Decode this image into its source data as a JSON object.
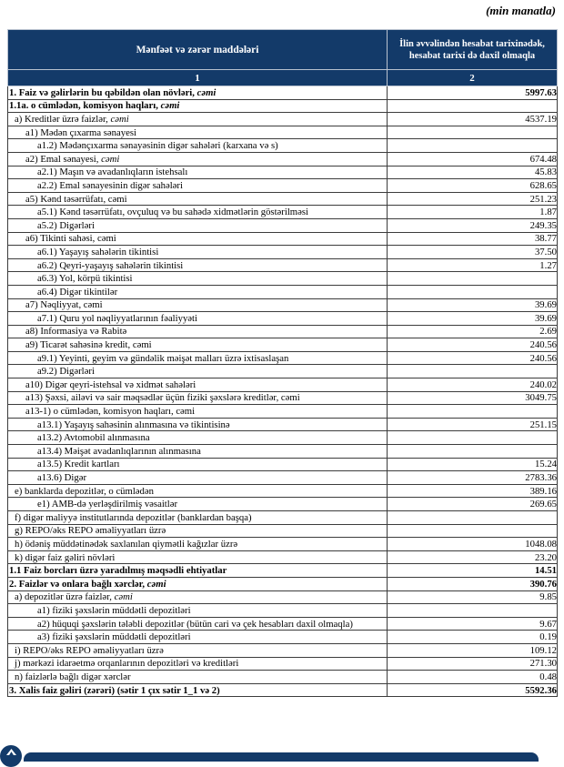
{
  "unit_note": "(min manatla)",
  "accent_color": "#133a69",
  "table": {
    "col1_header": "Mənfəət və zərər maddələri",
    "col2_header_line1": "İlin əvvəlindən hesabat tarixinədək,",
    "col2_header_line2": "hesabat tarixi də daxil olmaqla",
    "col1_index": "1",
    "col2_index": "2",
    "rows": [
      {
        "main": "1. Faiz və gəlirlərin bu qəbildən olan növləri, ",
        "em": "cəmi",
        "value": "5997.63",
        "indent": 0,
        "bold": true
      },
      {
        "main": "1.1a. o cümlədən, komisyon haqları, ",
        "em": "cəmi",
        "value": "",
        "indent": 0,
        "bold": true
      },
      {
        "main": "a) Kreditlər üzrə faizlər, ",
        "em": "cəmi",
        "value": "4537.19",
        "indent": 1,
        "bold": false
      },
      {
        "main": "a1) Mədən çıxarma sənayesi",
        "em": "",
        "value": "",
        "indent": 2,
        "bold": false
      },
      {
        "main": "a1.2) Mədənçıxarma sənayəsinin digər sahələri (karxana və s)",
        "em": "",
        "value": "",
        "indent": 3,
        "bold": false
      },
      {
        "main": "a2) Emal sənayesi, ",
        "em": "cəmi",
        "value": "674.48",
        "indent": 2,
        "bold": false
      },
      {
        "main": "a2.1) Maşın və avadanlıqların istehsalı",
        "em": "",
        "value": "45.83",
        "indent": 3,
        "bold": false
      },
      {
        "main": "a2.2) Emal sənayesinin digər sahələri",
        "em": "",
        "value": "628.65",
        "indent": 3,
        "bold": false
      },
      {
        "main": "a5) Kənd təsərrüfatı, cəmi",
        "em": "",
        "value": "251.23",
        "indent": 2,
        "bold": false
      },
      {
        "main": "a5.1) Kənd təsərrüfatı, ovçuluq və bu sahədə xidmətlərin göstərilməsi",
        "em": "",
        "value": "1.87",
        "indent": 3,
        "bold": false
      },
      {
        "main": "a5.2) Digərləri",
        "em": "",
        "value": "249.35",
        "indent": 3,
        "bold": false
      },
      {
        "main": "a6) Tikinti sahəsi, cəmi",
        "em": "",
        "value": "38.77",
        "indent": 2,
        "bold": false
      },
      {
        "main": "a6.1) Yaşayış sahələrin tikintisi",
        "em": "",
        "value": "37.50",
        "indent": 3,
        "bold": false
      },
      {
        "main": "a6.2) Qeyri-yaşayış sahələrin tikintisi",
        "em": "",
        "value": "1.27",
        "indent": 3,
        "bold": false
      },
      {
        "main": "a6.3) Yol, körpü tikintisi",
        "em": "",
        "value": "",
        "indent": 3,
        "bold": false
      },
      {
        "main": "a6.4) Digər tikintilər",
        "em": "",
        "value": "",
        "indent": 3,
        "bold": false
      },
      {
        "main": "a7) Nəqliyyat, cəmi",
        "em": "",
        "value": "39.69",
        "indent": 2,
        "bold": false
      },
      {
        "main": "a7.1) Quru yol nəqliyyatlarının fəaliyyəti",
        "em": "",
        "value": "39.69",
        "indent": 3,
        "bold": false
      },
      {
        "main": "a8)  Informasiya və Rabitə",
        "em": "",
        "value": "2.69",
        "indent": 2,
        "bold": false
      },
      {
        "main": "a9) Ticarət sahəsinə kredit, cəmi",
        "em": "",
        "value": "240.56",
        "indent": 2,
        "bold": false
      },
      {
        "main": "a9.1) Yeyinti, geyim və gündəlik məişət malları üzrə ixtisaslaşan",
        "em": "",
        "value": "240.56",
        "indent": 3,
        "bold": false
      },
      {
        "main": "a9.2) Digərləri",
        "em": "",
        "value": "",
        "indent": 3,
        "bold": false
      },
      {
        "main": "a10) Digər qeyri-istehsal və xidmət sahələri",
        "em": "",
        "value": "240.02",
        "indent": 2,
        "bold": false
      },
      {
        "main": "a13) Şəxsi, ailəvi və sair məqsədlər üçün fiziki şəxslərə kreditlər, cəmi",
        "em": "",
        "value": "3049.75",
        "indent": 2,
        "bold": false
      },
      {
        "main": "a13-1) o cümlədən, komisyon haqları, cəmi",
        "em": "",
        "value": "",
        "indent": 2,
        "bold": false
      },
      {
        "main": "a13.1) Yaşayış sahəsinin alınmasına və tikintisinə",
        "em": "",
        "value": "251.15",
        "indent": 3,
        "bold": false
      },
      {
        "main": "a13.2) Avtomobil alınmasına",
        "em": "",
        "value": "",
        "indent": 3,
        "bold": false
      },
      {
        "main": "a13.4) Məişət avadanlıqlarının alınmasına",
        "em": "",
        "value": "",
        "indent": 3,
        "bold": false
      },
      {
        "main": "a13.5) Kredit kartları",
        "em": "",
        "value": "15.24",
        "indent": 3,
        "bold": false
      },
      {
        "main": "a13.6) Digər",
        "em": "",
        "value": "2783.36",
        "indent": 3,
        "bold": false
      },
      {
        "main": "e) banklarda depozitlər, o cümlədən",
        "em": "",
        "value": "389.16",
        "indent": 1,
        "bold": false
      },
      {
        "main": "e1)  AMB-də yerləşdirilmiş vəsaitlər",
        "em": "",
        "value": "269.65",
        "indent": 3,
        "bold": false
      },
      {
        "main": "f) digər maliyyə institutlarında depozitlər (banklardan başqa)",
        "em": "",
        "value": "",
        "indent": 1,
        "bold": false
      },
      {
        "main": "g) REPO/əks REPO əməliyyatları üzrə",
        "em": "",
        "value": "",
        "indent": 1,
        "bold": false
      },
      {
        "main": "h) ödəniş müddətinədək saxlanılan qiymətli kağızlar üzrə",
        "em": "",
        "value": "1048.08",
        "indent": 1,
        "bold": false
      },
      {
        "main": "k) digər faiz gəliri növləri",
        "em": "",
        "value": "23.20",
        "indent": 1,
        "bold": false
      },
      {
        "main": "1.1 Faiz borcları üzrə yaradılmış məqsədli ehtiyatlar",
        "em": "",
        "value": "14.51",
        "indent": 0,
        "bold": true
      },
      {
        "main": "2. Faizlər və onlara bağlı xərclər, ",
        "em": "cəmi",
        "value": "390.76",
        "indent": 0,
        "bold": true
      },
      {
        "main": "a) depozitlər üzrə faizlər, ",
        "em": "cəmi",
        "value": "9.85",
        "indent": 1,
        "bold": false
      },
      {
        "main": "a1) fiziki şəxslərin müddətli depozitləri",
        "em": "",
        "value": "",
        "indent": 3,
        "bold": false
      },
      {
        "main": "a2) hüquqi şəxslərin tələbli depozitlər (bütün cari və çek hesabları daxil olmaqla)",
        "em": "",
        "value": "9.67",
        "indent": 3,
        "bold": false
      },
      {
        "main": "a3) fiziki şəxslərin müddətli depozitləri",
        "em": "",
        "value": "0.19",
        "indent": 3,
        "bold": false
      },
      {
        "main": "i) REPO/əks REPO əməliyyatları üzrə",
        "em": "",
        "value": "109.12",
        "indent": 1,
        "bold": false
      },
      {
        "main": "j) mərkəzi idarəetmə orqanlarının depozitləri və kreditləri",
        "em": "",
        "value": "271.30",
        "indent": 1,
        "bold": false
      },
      {
        "main": "n) faizlərlə bağlı digər xərclər",
        "em": "",
        "value": "0.48",
        "indent": 1,
        "bold": false
      },
      {
        "main": "3. Xalis faiz gəliri (zərəri) (sətir 1 çıx sətir 1_1 və 2)",
        "em": "",
        "value": "5592.36",
        "indent": 0,
        "bold": true
      }
    ]
  }
}
